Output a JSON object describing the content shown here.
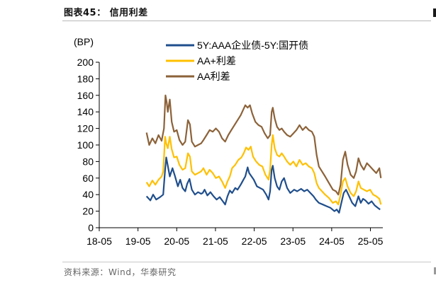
{
  "figure": {
    "title": "图表45： 信用利差",
    "source": "资料来源：Wind，华泰研究"
  },
  "chart_data": {
    "type": "line",
    "title": "信用利差",
    "ylabel": "(BP)",
    "xlabel": "",
    "ylim": [
      0,
      200
    ],
    "yticks": [
      0,
      20,
      40,
      60,
      80,
      100,
      120,
      140,
      160,
      180,
      200
    ],
    "xlim": [
      2018.33,
      2025.65
    ],
    "xticks": [
      {
        "value": 2018.33,
        "label": "18-05"
      },
      {
        "value": 2019.33,
        "label": "19-05"
      },
      {
        "value": 2020.33,
        "label": "20-05"
      },
      {
        "value": 2021.33,
        "label": "21-05"
      },
      {
        "value": 2022.33,
        "label": "22-05"
      },
      {
        "value": 2023.33,
        "label": "23-05"
      },
      {
        "value": 2024.33,
        "label": "24-05"
      },
      {
        "value": 2025.33,
        "label": "25-05"
      }
    ],
    "grid": false,
    "legend_position": "top-center",
    "series": [
      {
        "name": "5Y:AAA企业债-5Y:国开债",
        "color": "#1f4e8c",
        "points": [
          [
            2019.55,
            38
          ],
          [
            2019.65,
            33
          ],
          [
            2019.72,
            40
          ],
          [
            2019.8,
            34
          ],
          [
            2019.9,
            37
          ],
          [
            2019.98,
            40
          ],
          [
            2020.03,
            70
          ],
          [
            2020.06,
            85
          ],
          [
            2020.1,
            75
          ],
          [
            2020.15,
            62
          ],
          [
            2020.22,
            72
          ],
          [
            2020.28,
            63
          ],
          [
            2020.36,
            50
          ],
          [
            2020.42,
            58
          ],
          [
            2020.48,
            48
          ],
          [
            2020.55,
            44
          ],
          [
            2020.6,
            53
          ],
          [
            2020.66,
            59
          ],
          [
            2020.72,
            46
          ],
          [
            2020.8,
            40
          ],
          [
            2020.88,
            43
          ],
          [
            2020.96,
            41
          ],
          [
            2021.0,
            42
          ],
          [
            2021.05,
            46
          ],
          [
            2021.12,
            39
          ],
          [
            2021.2,
            43
          ],
          [
            2021.28,
            38
          ],
          [
            2021.36,
            34
          ],
          [
            2021.44,
            37
          ],
          [
            2021.52,
            32
          ],
          [
            2021.58,
            28
          ],
          [
            2021.64,
            38
          ],
          [
            2021.7,
            45
          ],
          [
            2021.76,
            42
          ],
          [
            2021.84,
            48
          ],
          [
            2021.9,
            46
          ],
          [
            2021.98,
            52
          ],
          [
            2022.04,
            57
          ],
          [
            2022.1,
            62
          ],
          [
            2022.16,
            73
          ],
          [
            2022.2,
            66
          ],
          [
            2022.26,
            62
          ],
          [
            2022.32,
            58
          ],
          [
            2022.4,
            50
          ],
          [
            2022.48,
            48
          ],
          [
            2022.56,
            46
          ],
          [
            2022.64,
            40
          ],
          [
            2022.7,
            34
          ],
          [
            2022.74,
            44
          ],
          [
            2022.78,
            70
          ],
          [
            2022.81,
            75
          ],
          [
            2022.86,
            60
          ],
          [
            2022.92,
            50
          ],
          [
            2022.98,
            46
          ],
          [
            2023.04,
            56
          ],
          [
            2023.1,
            60
          ],
          [
            2023.18,
            48
          ],
          [
            2023.26,
            42
          ],
          [
            2023.36,
            46
          ],
          [
            2023.44,
            44
          ],
          [
            2023.54,
            47
          ],
          [
            2023.62,
            44
          ],
          [
            2023.7,
            46
          ],
          [
            2023.78,
            42
          ],
          [
            2023.86,
            38
          ],
          [
            2023.92,
            34
          ],
          [
            2024.0,
            30
          ],
          [
            2024.1,
            28
          ],
          [
            2024.2,
            26
          ],
          [
            2024.3,
            24
          ],
          [
            2024.4,
            20
          ],
          [
            2024.46,
            22
          ],
          [
            2024.52,
            18
          ],
          [
            2024.58,
            30
          ],
          [
            2024.64,
            42
          ],
          [
            2024.7,
            46
          ],
          [
            2024.78,
            38
          ],
          [
            2024.86,
            30
          ],
          [
            2024.94,
            26
          ],
          [
            2025.02,
            38
          ],
          [
            2025.08,
            30
          ],
          [
            2025.14,
            35
          ],
          [
            2025.2,
            33
          ],
          [
            2025.28,
            29
          ],
          [
            2025.36,
            32
          ],
          [
            2025.44,
            27
          ],
          [
            2025.52,
            24
          ],
          [
            2025.58,
            22
          ]
        ]
      },
      {
        "name": "AA+利差",
        "color": "#ffc000",
        "points": [
          [
            2019.55,
            55
          ],
          [
            2019.62,
            50
          ],
          [
            2019.7,
            57
          ],
          [
            2019.78,
            52
          ],
          [
            2019.86,
            58
          ],
          [
            2019.94,
            62
          ],
          [
            2019.98,
            68
          ],
          [
            2020.03,
            110
          ],
          [
            2020.06,
            102
          ],
          [
            2020.1,
            96
          ],
          [
            2020.15,
            110
          ],
          [
            2020.2,
            95
          ],
          [
            2020.26,
            85
          ],
          [
            2020.33,
            86
          ],
          [
            2020.4,
            76
          ],
          [
            2020.48,
            70
          ],
          [
            2020.55,
            72
          ],
          [
            2020.62,
            90
          ],
          [
            2020.67,
            86
          ],
          [
            2020.72,
            68
          ],
          [
            2020.8,
            64
          ],
          [
            2020.88,
            66
          ],
          [
            2020.96,
            68
          ],
          [
            2021.02,
            72
          ],
          [
            2021.1,
            64
          ],
          [
            2021.18,
            70
          ],
          [
            2021.26,
            66
          ],
          [
            2021.34,
            60
          ],
          [
            2021.42,
            62
          ],
          [
            2021.5,
            56
          ],
          [
            2021.58,
            48
          ],
          [
            2021.64,
            56
          ],
          [
            2021.7,
            62
          ],
          [
            2021.76,
            72
          ],
          [
            2021.84,
            76
          ],
          [
            2021.92,
            82
          ],
          [
            2022.0,
            85
          ],
          [
            2022.06,
            90
          ],
          [
            2022.12,
            97
          ],
          [
            2022.18,
            94
          ],
          [
            2022.24,
            98
          ],
          [
            2022.3,
            86
          ],
          [
            2022.38,
            80
          ],
          [
            2022.46,
            76
          ],
          [
            2022.54,
            74
          ],
          [
            2022.62,
            64
          ],
          [
            2022.7,
            58
          ],
          [
            2022.74,
            70
          ],
          [
            2022.78,
            100
          ],
          [
            2022.81,
            112
          ],
          [
            2022.86,
            96
          ],
          [
            2022.92,
            88
          ],
          [
            2022.98,
            86
          ],
          [
            2023.04,
            90
          ],
          [
            2023.1,
            86
          ],
          [
            2023.18,
            80
          ],
          [
            2023.26,
            76
          ],
          [
            2023.34,
            80
          ],
          [
            2023.42,
            74
          ],
          [
            2023.5,
            82
          ],
          [
            2023.58,
            76
          ],
          [
            2023.66,
            78
          ],
          [
            2023.74,
            74
          ],
          [
            2023.82,
            72
          ],
          [
            2023.88,
            66
          ],
          [
            2023.94,
            54
          ],
          [
            2024.0,
            48
          ],
          [
            2024.08,
            44
          ],
          [
            2024.16,
            40
          ],
          [
            2024.26,
            36
          ],
          [
            2024.36,
            30
          ],
          [
            2024.44,
            32
          ],
          [
            2024.5,
            28
          ],
          [
            2024.56,
            40
          ],
          [
            2024.62,
            56
          ],
          [
            2024.68,
            60
          ],
          [
            2024.74,
            50
          ],
          [
            2024.82,
            42
          ],
          [
            2024.9,
            38
          ],
          [
            2024.96,
            44
          ],
          [
            2025.02,
            56
          ],
          [
            2025.08,
            48
          ],
          [
            2025.16,
            46
          ],
          [
            2025.24,
            44
          ],
          [
            2025.32,
            46
          ],
          [
            2025.4,
            40
          ],
          [
            2025.48,
            38
          ],
          [
            2025.56,
            35
          ],
          [
            2025.6,
            28
          ]
        ]
      },
      {
        "name": "AA利差",
        "color": "#8c6239",
        "points": [
          [
            2019.55,
            115
          ],
          [
            2019.62,
            100
          ],
          [
            2019.7,
            108
          ],
          [
            2019.78,
            102
          ],
          [
            2019.86,
            112
          ],
          [
            2019.94,
            105
          ],
          [
            2020.0,
            120
          ],
          [
            2020.04,
            160
          ],
          [
            2020.07,
            152
          ],
          [
            2020.1,
            140
          ],
          [
            2020.15,
            155
          ],
          [
            2020.2,
            128
          ],
          [
            2020.26,
            116
          ],
          [
            2020.33,
            118
          ],
          [
            2020.4,
            106
          ],
          [
            2020.48,
            100
          ],
          [
            2020.55,
            104
          ],
          [
            2020.62,
            130
          ],
          [
            2020.67,
            125
          ],
          [
            2020.72,
            104
          ],
          [
            2020.8,
            98
          ],
          [
            2020.88,
            100
          ],
          [
            2020.96,
            102
          ],
          [
            2021.02,
            106
          ],
          [
            2021.1,
            112
          ],
          [
            2021.18,
            118
          ],
          [
            2021.26,
            116
          ],
          [
            2021.34,
            120
          ],
          [
            2021.42,
            116
          ],
          [
            2021.5,
            108
          ],
          [
            2021.58,
            104
          ],
          [
            2021.66,
            112
          ],
          [
            2021.74,
            118
          ],
          [
            2021.82,
            124
          ],
          [
            2021.9,
            130
          ],
          [
            2021.98,
            136
          ],
          [
            2022.04,
            142
          ],
          [
            2022.1,
            148
          ],
          [
            2022.16,
            145
          ],
          [
            2022.22,
            148
          ],
          [
            2022.28,
            138
          ],
          [
            2022.36,
            128
          ],
          [
            2022.44,
            124
          ],
          [
            2022.52,
            122
          ],
          [
            2022.6,
            114
          ],
          [
            2022.68,
            108
          ],
          [
            2022.74,
            112
          ],
          [
            2022.78,
            140
          ],
          [
            2022.81,
            145
          ],
          [
            2022.86,
            132
          ],
          [
            2022.92,
            122
          ],
          [
            2022.98,
            118
          ],
          [
            2023.04,
            120
          ],
          [
            2023.1,
            116
          ],
          [
            2023.18,
            112
          ],
          [
            2023.26,
            110
          ],
          [
            2023.34,
            114
          ],
          [
            2023.42,
            118
          ],
          [
            2023.5,
            124
          ],
          [
            2023.58,
            118
          ],
          [
            2023.66,
            122
          ],
          [
            2023.74,
            118
          ],
          [
            2023.82,
            116
          ],
          [
            2023.88,
            110
          ],
          [
            2023.94,
            88
          ],
          [
            2024.0,
            74
          ],
          [
            2024.08,
            68
          ],
          [
            2024.16,
            62
          ],
          [
            2024.26,
            54
          ],
          [
            2024.36,
            46
          ],
          [
            2024.44,
            44
          ],
          [
            2024.5,
            40
          ],
          [
            2024.56,
            52
          ],
          [
            2024.62,
            82
          ],
          [
            2024.68,
            92
          ],
          [
            2024.74,
            76
          ],
          [
            2024.82,
            64
          ],
          [
            2024.9,
            60
          ],
          [
            2024.96,
            68
          ],
          [
            2025.02,
            84
          ],
          [
            2025.08,
            76
          ],
          [
            2025.16,
            70
          ],
          [
            2025.24,
            78
          ],
          [
            2025.32,
            74
          ],
          [
            2025.4,
            70
          ],
          [
            2025.48,
            66
          ],
          [
            2025.56,
            72
          ],
          [
            2025.6,
            60
          ]
        ]
      }
    ]
  }
}
